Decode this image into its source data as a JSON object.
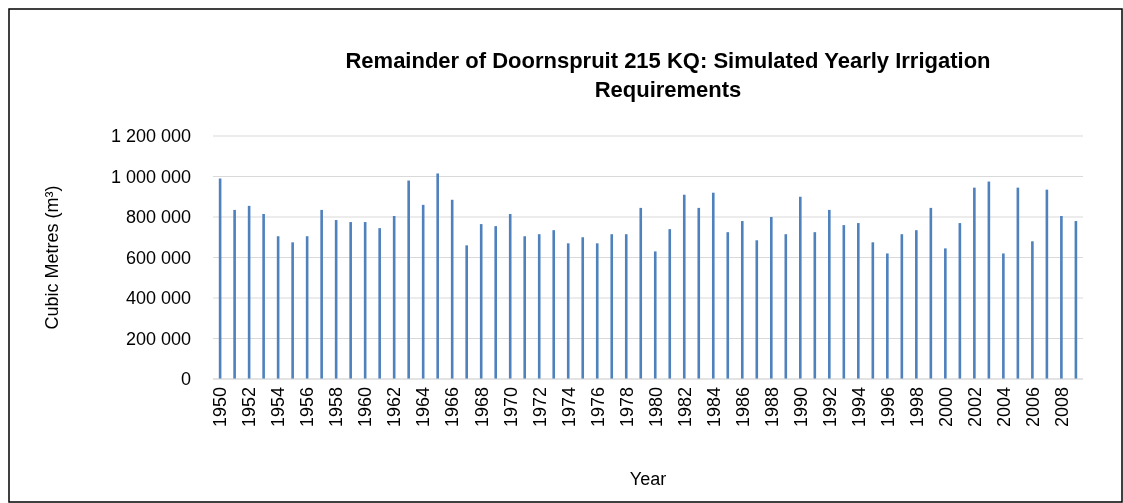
{
  "chart_data": {
    "type": "bar",
    "title": "Remainder of Doornspruit 215 KQ: Simulated Yearly Irrigation Requirements",
    "xlabel": "Year",
    "ylabel": "Cubic Metres (m³)",
    "categories": [
      "1950",
      null,
      "1952",
      null,
      "1954",
      null,
      "1956",
      null,
      "1958",
      null,
      "1960",
      null,
      "1962",
      null,
      "1964",
      null,
      "1966",
      null,
      "1968",
      null,
      "1970",
      null,
      "1972",
      null,
      "1974",
      null,
      "1976",
      null,
      "1978",
      null,
      "1980",
      null,
      "1982",
      null,
      "1984",
      null,
      "1986",
      null,
      "1988",
      null,
      "1990",
      null,
      "1992",
      null,
      "1994",
      null,
      "1996",
      null,
      "1998",
      null,
      "2000",
      null,
      "2002",
      null,
      "2004",
      null,
      "2006",
      null,
      "2008",
      null
    ],
    "values": [
      990000,
      835000,
      855000,
      815000,
      705000,
      675000,
      705000,
      835000,
      785000,
      775000,
      775000,
      745000,
      805000,
      980000,
      860000,
      1015000,
      885000,
      660000,
      765000,
      755000,
      815000,
      705000,
      715000,
      735000,
      670000,
      700000,
      670000,
      715000,
      715000,
      845000,
      630000,
      740000,
      910000,
      845000,
      920000,
      725000,
      780000,
      685000,
      800000,
      715000,
      900000,
      725000,
      835000,
      760000,
      770000,
      675000,
      620000,
      715000,
      735000,
      845000,
      645000,
      770000,
      945000,
      975000,
      620000,
      945000,
      680000,
      935000,
      805000,
      780000
    ],
    "color": "#4f81bd",
    "ylim": [
      0,
      1200000
    ],
    "yticks": [
      0,
      {
        "value": 200000,
        "label": "200 000"
      },
      {
        "value": 400000,
        "label": "400 000"
      },
      {
        "value": 600000,
        "label": "600 000"
      },
      {
        "value": 800000,
        "label": "800 000"
      },
      {
        "value": 1000000,
        "label": "1 000 000"
      },
      {
        "value": 1200000,
        "label": "1 200 000"
      }
    ],
    "grid": "y"
  }
}
